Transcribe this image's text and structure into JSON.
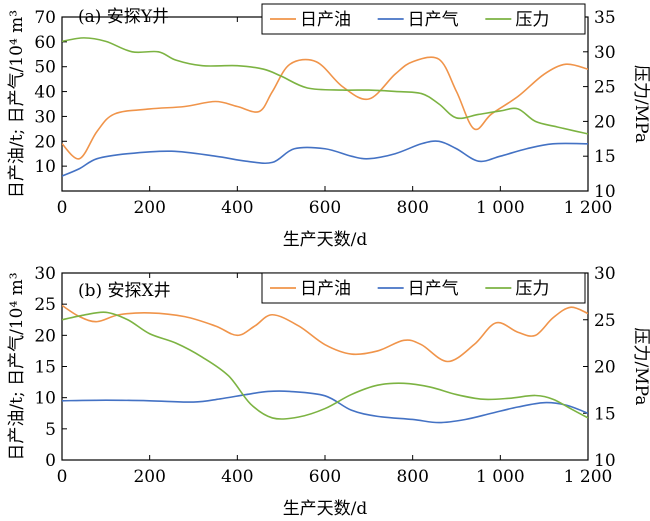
{
  "chart_data": [
    {
      "type": "line",
      "title": "(a) 安探Y井",
      "xlabel": "生产天数/d",
      "ylabel_left": "日产油/t; 日产气/10⁴ m³",
      "ylabel_right": "压力/MPa",
      "xlim": [
        0,
        1200
      ],
      "ylim_left": [
        0,
        70
      ],
      "ylim_right": [
        10,
        35
      ],
      "x_ticks": [
        "0",
        "200",
        "400",
        "600",
        "800",
        "1 000",
        "1 200"
      ],
      "x_tick_values": [
        0,
        200,
        400,
        600,
        800,
        1000,
        1200
      ],
      "y_ticks_left": [
        "10",
        "20",
        "30",
        "40",
        "50",
        "60",
        "70"
      ],
      "y_tick_values_left": [
        10,
        20,
        30,
        40,
        50,
        60,
        70
      ],
      "y_ticks_right": [
        "10",
        "15",
        "20",
        "25",
        "30",
        "35"
      ],
      "y_tick_values_right": [
        10,
        15,
        20,
        25,
        30,
        35
      ],
      "legend_position": "top-right",
      "series": [
        {
          "name": "日产油",
          "axis": "left",
          "color": "#f0944a",
          "x": [
            0,
            40,
            80,
            120,
            200,
            280,
            350,
            400,
            450,
            480,
            520,
            580,
            640,
            700,
            760,
            800,
            860,
            900,
            940,
            980,
            1040,
            1100,
            1150,
            1200
          ],
          "y": [
            19,
            13,
            24,
            31,
            33,
            34,
            36,
            34,
            32,
            40,
            51,
            52,
            42,
            37,
            47,
            52,
            53,
            40,
            25,
            31,
            38,
            47,
            51,
            49
          ]
        },
        {
          "name": "日产气",
          "axis": "left",
          "color": "#4472c4",
          "x": [
            0,
            40,
            80,
            150,
            250,
            350,
            420,
            480,
            530,
            600,
            660,
            700,
            760,
            820,
            860,
            900,
            950,
            1000,
            1060,
            1120,
            1200
          ],
          "y": [
            6,
            9,
            13,
            15,
            16,
            14,
            12,
            11.5,
            17,
            17,
            14,
            13,
            15,
            19,
            20,
            17,
            12,
            14,
            17,
            19,
            19
          ]
        },
        {
          "name": "压力",
          "axis": "right",
          "color": "#7cb342",
          "x": [
            0,
            50,
            100,
            160,
            220,
            260,
            320,
            400,
            460,
            500,
            560,
            640,
            700,
            760,
            820,
            860,
            900,
            950,
            1000,
            1040,
            1080,
            1130,
            1200
          ],
          "y": [
            31.5,
            32,
            31.5,
            30,
            30,
            28.8,
            28,
            28,
            27.5,
            26.5,
            24.8,
            24.5,
            24.5,
            24.3,
            24,
            22.5,
            20.5,
            21,
            21.5,
            21.8,
            20,
            19.2,
            18.2
          ]
        }
      ]
    },
    {
      "type": "line",
      "title": "(b) 安探X井",
      "xlabel": "生产天数/d",
      "ylabel_left": "日产油/t; 日产气/10⁴ m³",
      "ylabel_right": "压力/MPa",
      "xlim": [
        0,
        1200
      ],
      "ylim_left": [
        0,
        30
      ],
      "ylim_right": [
        10,
        30
      ],
      "x_ticks": [
        "0",
        "200",
        "400",
        "600",
        "800",
        "1 000",
        "1 200"
      ],
      "x_tick_values": [
        0,
        200,
        400,
        600,
        800,
        1000,
        1200
      ],
      "y_ticks_left": [
        "0",
        "5",
        "10",
        "15",
        "20",
        "25",
        "30"
      ],
      "y_tick_values_left": [
        0,
        5,
        10,
        15,
        20,
        25,
        30
      ],
      "y_ticks_right": [
        "10",
        "15",
        "20",
        "25",
        "30"
      ],
      "y_tick_values_right": [
        10,
        15,
        20,
        25,
        30
      ],
      "legend_position": "top-right",
      "series": [
        {
          "name": "日产油",
          "axis": "left",
          "color": "#f0944a",
          "x": [
            0,
            40,
            80,
            130,
            200,
            280,
            350,
            400,
            440,
            480,
            540,
            600,
            660,
            720,
            780,
            820,
            880,
            940,
            990,
            1040,
            1080,
            1120,
            1160,
            1200
          ],
          "y": [
            24.8,
            23,
            22.2,
            23.3,
            23.6,
            23,
            21.5,
            20,
            21.5,
            23.3,
            21.5,
            18.5,
            17,
            17.5,
            19.2,
            18.5,
            15.8,
            18.5,
            22,
            20.5,
            20,
            22.8,
            24.5,
            23.5
          ]
        },
        {
          "name": "日产气",
          "axis": "left",
          "color": "#4472c4",
          "x": [
            0,
            100,
            200,
            300,
            360,
            420,
            470,
            520,
            600,
            660,
            720,
            800,
            860,
            920,
            980,
            1040,
            1100,
            1150,
            1200
          ],
          "y": [
            9.5,
            9.6,
            9.5,
            9.3,
            9.8,
            10.5,
            11,
            11,
            10.3,
            8,
            7,
            6.5,
            6,
            6.5,
            7.5,
            8.5,
            9.2,
            8.8,
            7.5
          ]
        },
        {
          "name": "压力",
          "axis": "right",
          "color": "#7cb342",
          "x": [
            0,
            50,
            100,
            150,
            200,
            260,
            320,
            380,
            430,
            480,
            540,
            600,
            660,
            720,
            780,
            840,
            900,
            960,
            1020,
            1080,
            1120,
            1160,
            1200
          ],
          "y": [
            25,
            25.5,
            25.8,
            25,
            23.5,
            22.5,
            21,
            19,
            16,
            14.5,
            14.6,
            15.5,
            17,
            18,
            18.2,
            17.8,
            17,
            16.5,
            16.6,
            16.9,
            16.5,
            15.5,
            14.5
          ]
        }
      ]
    }
  ]
}
